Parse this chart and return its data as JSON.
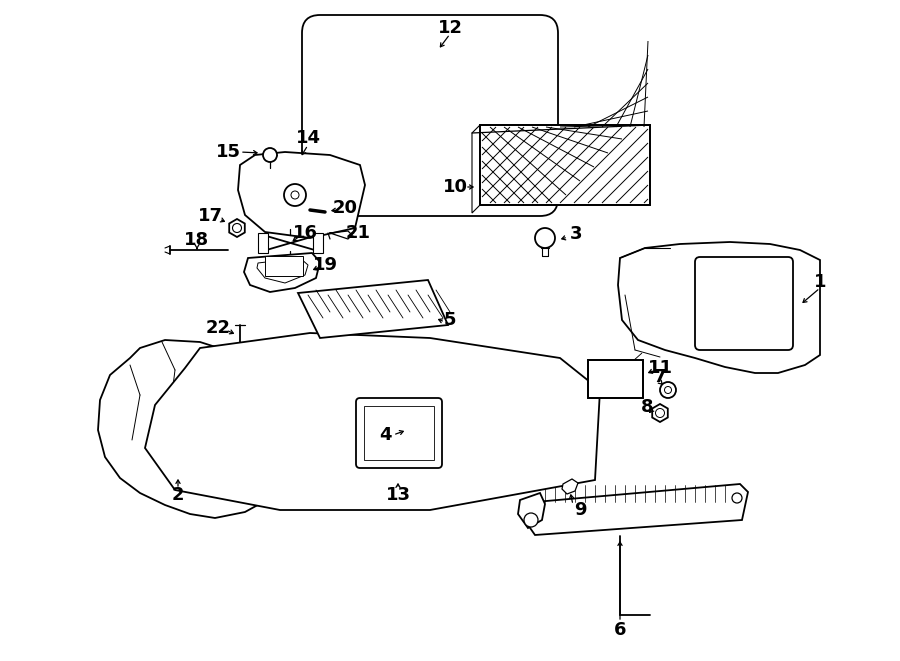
{
  "bg_color": "#ffffff",
  "lc": "#000000",
  "lw": 1.3,
  "fig_w": 9.0,
  "fig_h": 6.61,
  "dpi": 100
}
